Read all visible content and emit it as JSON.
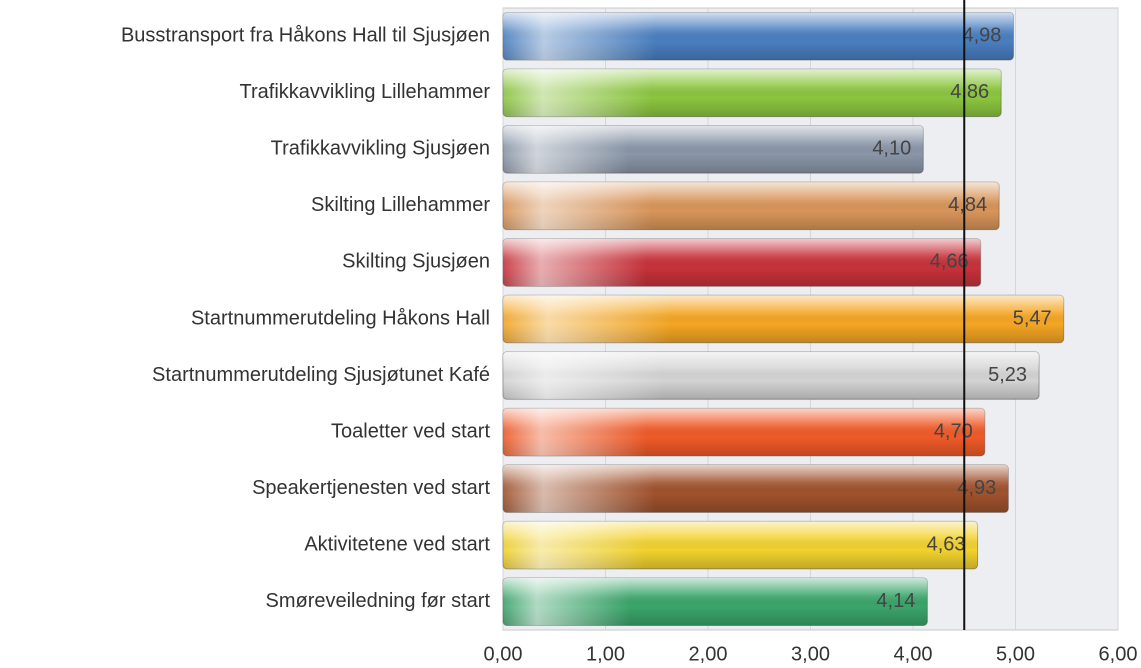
{
  "chart_data": {
    "type": "bar",
    "orientation": "horizontal",
    "categories": [
      "Busstransport fra Håkons Hall til Sjusjøen",
      "Trafikkavvikling Lillehammer",
      "Trafikkavvikling Sjusjøen",
      "Skilting Lillehammer",
      "Skilting Sjusjøen",
      "Startnummerutdeling Håkons Hall",
      "Startnummerutdeling Sjusjøtunet Kafé",
      "Toaletter ved start",
      "Speakertjenesten ved start",
      "Aktivitetene ved start",
      "Smøreveiledning før start"
    ],
    "values": [
      4.98,
      4.86,
      4.1,
      4.84,
      4.66,
      5.47,
      5.23,
      4.7,
      4.93,
      4.63,
      4.14
    ],
    "value_labels": [
      "4,98",
      "4,86",
      "4,10",
      "4,84",
      "4,66",
      "5,47",
      "5,23",
      "4,70",
      "4,93",
      "4,63",
      "4,14"
    ],
    "colors": [
      "#4a7fc0",
      "#8cc63f",
      "#8a96a8",
      "#d9955a",
      "#c8323a",
      "#f5a623",
      "#d4d4d4",
      "#f05a28",
      "#a0522d",
      "#f2d22e",
      "#3aa56a"
    ],
    "xlim": [
      0,
      6
    ],
    "xticks": [
      {
        "value": 0,
        "label": "0,00"
      },
      {
        "value": 1,
        "label": "1,00"
      },
      {
        "value": 2,
        "label": "2,00"
      },
      {
        "value": 3,
        "label": "3,00"
      },
      {
        "value": 4,
        "label": "4,00"
      },
      {
        "value": 5,
        "label": "5,00"
      },
      {
        "value": 6,
        "label": "6,00"
      }
    ],
    "grid": true,
    "reference_line": 4.5
  }
}
